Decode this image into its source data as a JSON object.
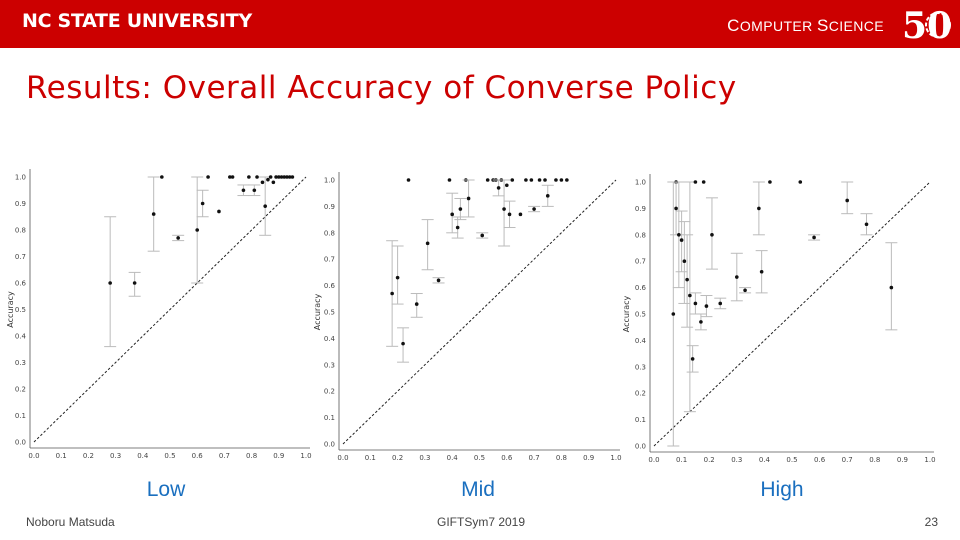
{
  "header": {
    "university": "NC STATE UNIVERSITY",
    "department_cap1": "C",
    "department_rest1": "OMPUTER ",
    "department_cap2": "S",
    "department_rest2": "CIENCE",
    "badge_text": "50",
    "colors": {
      "bar": "#cc0000",
      "text": "#ffffff"
    }
  },
  "slide": {
    "title": "Results: Overall Accuracy of Converse Policy",
    "title_color": "#cc0000",
    "label_color": "#1a6fbf"
  },
  "footer": {
    "author": "Noboru Matsuda",
    "event": "GIFTSym7 2019",
    "page": "23"
  },
  "chart_data": [
    {
      "type": "scatter",
      "panel_label": "Low",
      "ylabel": "Accuracy",
      "xlabel": "",
      "xlim": [
        0,
        1
      ],
      "ylim": [
        0,
        1
      ],
      "xticks": [
        "0.0",
        "0.1",
        "0.2",
        "0.3",
        "0.4",
        "0.5",
        "0.6",
        "0.7",
        "0.8",
        "0.9",
        "1.0"
      ],
      "yticks": [
        "0.0",
        "0.1",
        "0.2",
        "0.3",
        "0.4",
        "0.5",
        "0.6",
        "0.7",
        "0.8",
        "0.9",
        "1.0"
      ],
      "reference_line": "y = x (dashed)",
      "points": [
        {
          "x": 0.28,
          "y": 0.6,
          "lo": 0.36,
          "hi": 0.85
        },
        {
          "x": 0.37,
          "y": 0.6,
          "lo": 0.55,
          "hi": 0.64
        },
        {
          "x": 0.44,
          "y": 0.86,
          "lo": 0.72,
          "hi": 1.0
        },
        {
          "x": 0.47,
          "y": 1.0
        },
        {
          "x": 0.53,
          "y": 0.77,
          "lo": 0.76,
          "hi": 0.78
        },
        {
          "x": 0.6,
          "y": 0.8,
          "lo": 0.6,
          "hi": 1.0
        },
        {
          "x": 0.62,
          "y": 0.9,
          "lo": 0.85,
          "hi": 0.95
        },
        {
          "x": 0.64,
          "y": 1.0
        },
        {
          "x": 0.68,
          "y": 0.87
        },
        {
          "x": 0.72,
          "y": 1.0
        },
        {
          "x": 0.73,
          "y": 1.0
        },
        {
          "x": 0.77,
          "y": 0.95,
          "lo": 0.93,
          "hi": 0.97
        },
        {
          "x": 0.79,
          "y": 1.0
        },
        {
          "x": 0.81,
          "y": 0.95,
          "lo": 0.93,
          "hi": 0.97
        },
        {
          "x": 0.82,
          "y": 1.0
        },
        {
          "x": 0.84,
          "y": 0.98
        },
        {
          "x": 0.85,
          "y": 0.89,
          "lo": 0.78,
          "hi": 1.0
        },
        {
          "x": 0.86,
          "y": 0.99
        },
        {
          "x": 0.87,
          "y": 1.0
        },
        {
          "x": 0.88,
          "y": 0.98
        },
        {
          "x": 0.89,
          "y": 1.0
        },
        {
          "x": 0.9,
          "y": 1.0
        },
        {
          "x": 0.91,
          "y": 1.0
        },
        {
          "x": 0.92,
          "y": 1.0
        },
        {
          "x": 0.93,
          "y": 1.0
        },
        {
          "x": 0.94,
          "y": 1.0
        },
        {
          "x": 0.95,
          "y": 1.0
        }
      ]
    },
    {
      "type": "scatter",
      "panel_label": "Mid",
      "ylabel": "Accuracy",
      "xlabel": "",
      "xlim": [
        0,
        1
      ],
      "ylim": [
        0,
        1
      ],
      "xticks": [
        "0.0",
        "0.1",
        "0.2",
        "0.3",
        "0.4",
        "0.5",
        "0.6",
        "0.7",
        "0.8",
        "0.9",
        "1.0"
      ],
      "yticks": [
        "0.0",
        "0.1",
        "0.2",
        "0.3",
        "0.4",
        "0.5",
        "0.6",
        "0.7",
        "0.8",
        "0.9",
        "1.0"
      ],
      "reference_line": "y = x (dashed)",
      "points": [
        {
          "x": 0.18,
          "y": 0.57,
          "lo": 0.37,
          "hi": 0.77
        },
        {
          "x": 0.2,
          "y": 0.63,
          "lo": 0.53,
          "hi": 0.75
        },
        {
          "x": 0.22,
          "y": 0.38,
          "lo": 0.31,
          "hi": 0.44
        },
        {
          "x": 0.24,
          "y": 1.0
        },
        {
          "x": 0.27,
          "y": 0.53,
          "lo": 0.48,
          "hi": 0.57
        },
        {
          "x": 0.31,
          "y": 0.76,
          "lo": 0.66,
          "hi": 0.85
        },
        {
          "x": 0.35,
          "y": 0.62,
          "lo": 0.61,
          "hi": 0.63
        },
        {
          "x": 0.39,
          "y": 1.0
        },
        {
          "x": 0.4,
          "y": 0.87,
          "lo": 0.8,
          "hi": 0.95
        },
        {
          "x": 0.42,
          "y": 0.82,
          "lo": 0.78,
          "hi": 0.86
        },
        {
          "x": 0.43,
          "y": 0.89,
          "lo": 0.85,
          "hi": 0.93
        },
        {
          "x": 0.45,
          "y": 1.0
        },
        {
          "x": 0.46,
          "y": 0.93,
          "lo": 0.86,
          "hi": 1.0
        },
        {
          "x": 0.51,
          "y": 0.79,
          "lo": 0.78,
          "hi": 0.8
        },
        {
          "x": 0.53,
          "y": 1.0
        },
        {
          "x": 0.55,
          "y": 1.0
        },
        {
          "x": 0.56,
          "y": 1.0
        },
        {
          "x": 0.57,
          "y": 0.97,
          "lo": 0.94,
          "hi": 1.0
        },
        {
          "x": 0.58,
          "y": 1.0
        },
        {
          "x": 0.59,
          "y": 0.89,
          "lo": 0.75,
          "hi": 1.0
        },
        {
          "x": 0.6,
          "y": 0.98
        },
        {
          "x": 0.61,
          "y": 0.87,
          "lo": 0.82,
          "hi": 0.92
        },
        {
          "x": 0.62,
          "y": 1.0
        },
        {
          "x": 0.65,
          "y": 0.87
        },
        {
          "x": 0.67,
          "y": 1.0
        },
        {
          "x": 0.69,
          "y": 1.0
        },
        {
          "x": 0.7,
          "y": 0.89,
          "lo": 0.88,
          "hi": 0.9
        },
        {
          "x": 0.72,
          "y": 1.0
        },
        {
          "x": 0.74,
          "y": 1.0
        },
        {
          "x": 0.75,
          "y": 0.94,
          "lo": 0.9,
          "hi": 0.98
        },
        {
          "x": 0.78,
          "y": 1.0
        },
        {
          "x": 0.8,
          "y": 1.0
        },
        {
          "x": 0.82,
          "y": 1.0
        }
      ]
    },
    {
      "type": "scatter",
      "panel_label": "High",
      "ylabel": "Accuracy",
      "xlabel": "",
      "xlim": [
        0,
        1
      ],
      "ylim": [
        0,
        1
      ],
      "xticks": [
        "0.0",
        "0.1",
        "0.2",
        "0.3",
        "0.4",
        "0.5",
        "0.6",
        "0.7",
        "0.8",
        "0.9",
        "1.0"
      ],
      "yticks": [
        "0.0",
        "0.1",
        "0.2",
        "0.3",
        "0.4",
        "0.5",
        "0.6",
        "0.7",
        "0.8",
        "0.9",
        "1.0"
      ],
      "reference_line": "y = x (dashed)",
      "points": [
        {
          "x": 0.07,
          "y": 0.5,
          "lo": 0.0,
          "hi": 1.0
        },
        {
          "x": 0.08,
          "y": 1.0
        },
        {
          "x": 0.08,
          "y": 0.9,
          "lo": 0.8,
          "hi": 1.0
        },
        {
          "x": 0.09,
          "y": 0.8,
          "lo": 0.6,
          "hi": 1.0
        },
        {
          "x": 0.1,
          "y": 0.78,
          "lo": 0.66,
          "hi": 0.89
        },
        {
          "x": 0.11,
          "y": 0.7,
          "lo": 0.54,
          "hi": 0.85
        },
        {
          "x": 0.12,
          "y": 0.63,
          "lo": 0.45,
          "hi": 0.8
        },
        {
          "x": 0.13,
          "y": 0.57,
          "lo": 0.13,
          "hi": 1.0
        },
        {
          "x": 0.14,
          "y": 0.33,
          "lo": 0.28,
          "hi": 0.38
        },
        {
          "x": 0.15,
          "y": 1.0
        },
        {
          "x": 0.15,
          "y": 0.54,
          "lo": 0.5,
          "hi": 0.58
        },
        {
          "x": 0.17,
          "y": 0.47,
          "lo": 0.44,
          "hi": 0.5
        },
        {
          "x": 0.18,
          "y": 1.0
        },
        {
          "x": 0.19,
          "y": 0.53,
          "lo": 0.49,
          "hi": 0.57
        },
        {
          "x": 0.21,
          "y": 0.8,
          "lo": 0.67,
          "hi": 0.94
        },
        {
          "x": 0.24,
          "y": 0.54,
          "lo": 0.52,
          "hi": 0.56
        },
        {
          "x": 0.3,
          "y": 0.64,
          "lo": 0.55,
          "hi": 0.73
        },
        {
          "x": 0.33,
          "y": 0.59,
          "lo": 0.58,
          "hi": 0.6
        },
        {
          "x": 0.38,
          "y": 0.9,
          "lo": 0.8,
          "hi": 1.0
        },
        {
          "x": 0.39,
          "y": 0.66,
          "lo": 0.58,
          "hi": 0.74
        },
        {
          "x": 0.42,
          "y": 1.0
        },
        {
          "x": 0.53,
          "y": 1.0
        },
        {
          "x": 0.58,
          "y": 0.79,
          "lo": 0.78,
          "hi": 0.8
        },
        {
          "x": 0.7,
          "y": 0.93,
          "lo": 0.88,
          "hi": 1.0
        },
        {
          "x": 0.77,
          "y": 0.84,
          "lo": 0.8,
          "hi": 0.88
        },
        {
          "x": 0.86,
          "y": 0.6,
          "lo": 0.44,
          "hi": 0.77
        }
      ]
    }
  ]
}
